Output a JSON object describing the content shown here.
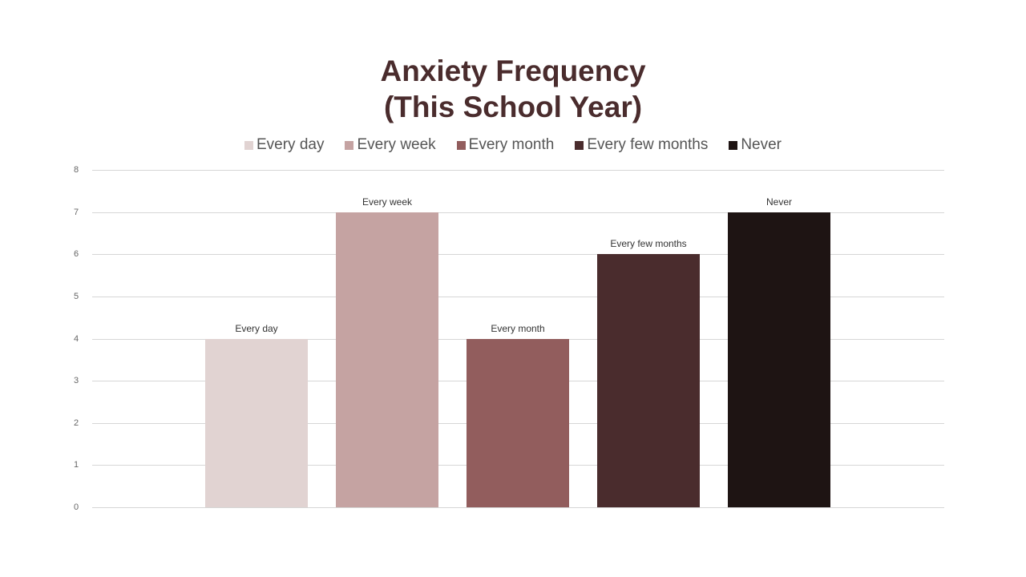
{
  "chart_data": {
    "type": "bar",
    "title": "Anxiety Frequency (This School Year)",
    "title_lines": [
      "Anxiety Frequency",
      "(This School Year)"
    ],
    "categories": [
      "Every day",
      "Every week",
      "Every month",
      "Every few months",
      "Never"
    ],
    "values": [
      4,
      7,
      4,
      6,
      7
    ],
    "colors": [
      "#e1d3d2",
      "#c5a3a2",
      "#925d5d",
      "#4a2c2d",
      "#1e1413"
    ],
    "xlabel": "",
    "ylabel": "",
    "ylim": [
      0,
      8
    ],
    "yticks": [
      0,
      1,
      2,
      3,
      4,
      5,
      6,
      7,
      8
    ],
    "grid": true,
    "legend_position": "top",
    "data_labels": "category name above each bar"
  },
  "legend": {
    "items": [
      {
        "label": "Every day",
        "color": "#e1d3d2"
      },
      {
        "label": "Every week",
        "color": "#c5a3a2"
      },
      {
        "label": "Every month",
        "color": "#925d5d"
      },
      {
        "label": "Every few months",
        "color": "#4a2c2d"
      },
      {
        "label": "Never",
        "color": "#1e1413"
      }
    ]
  }
}
